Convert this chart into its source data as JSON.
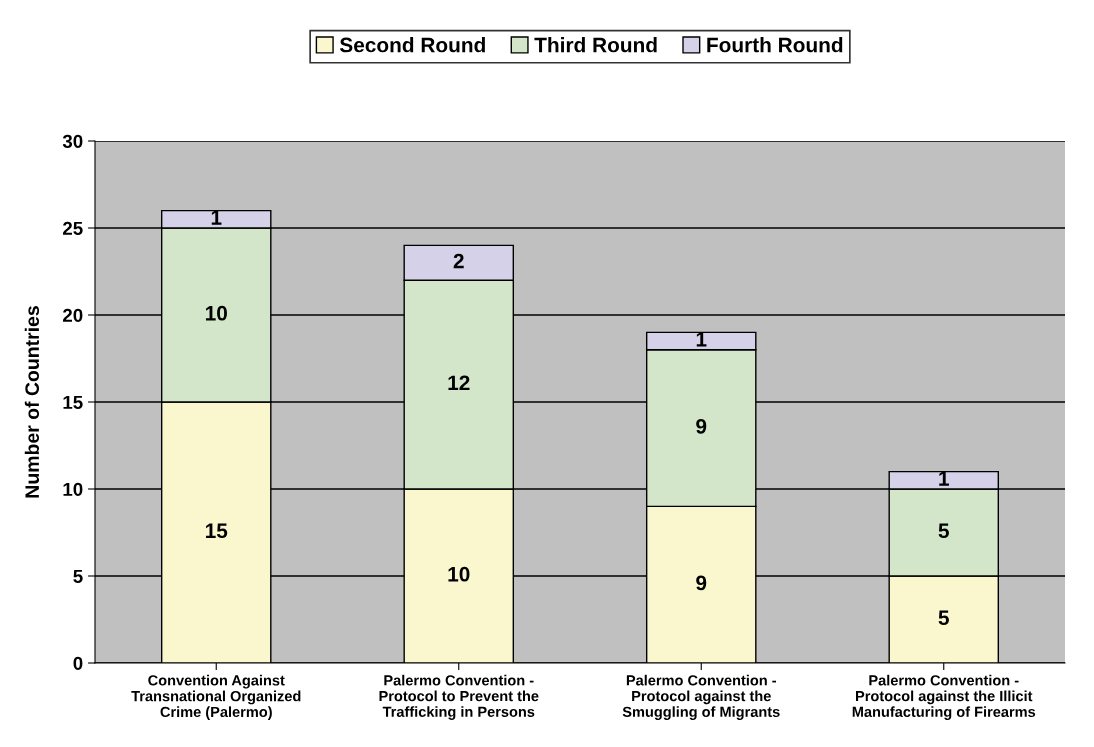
{
  "chart_data": {
    "type": "bar",
    "stacked": true,
    "ylabel": "Number of Countries",
    "categories": [
      "Convention Against\nTransnational Organized\nCrime (Palermo)",
      "Palermo Convention -\nProtocol to Prevent the\nTrafficking in Persons",
      "Palermo Convention -\nProtocol against the\nSmuggling of Migrants",
      "Palermo Convention -\nProtocol against the Illicit\nManufacturing of Firearms"
    ],
    "series": [
      {
        "name": "Second Round",
        "color": "#faf7cf",
        "values": [
          15,
          10,
          9,
          5
        ]
      },
      {
        "name": "Third Round",
        "color": "#d3e6c9",
        "values": [
          10,
          12,
          9,
          5
        ]
      },
      {
        "name": "Fourth Round",
        "color": "#d4d1e9",
        "values": [
          1,
          2,
          1,
          1
        ]
      }
    ],
    "ylim": [
      0,
      30
    ],
    "yticks": [
      0,
      5,
      10,
      15,
      20,
      25,
      30
    ],
    "grid": "y",
    "legend": "top",
    "data_labels": true
  }
}
